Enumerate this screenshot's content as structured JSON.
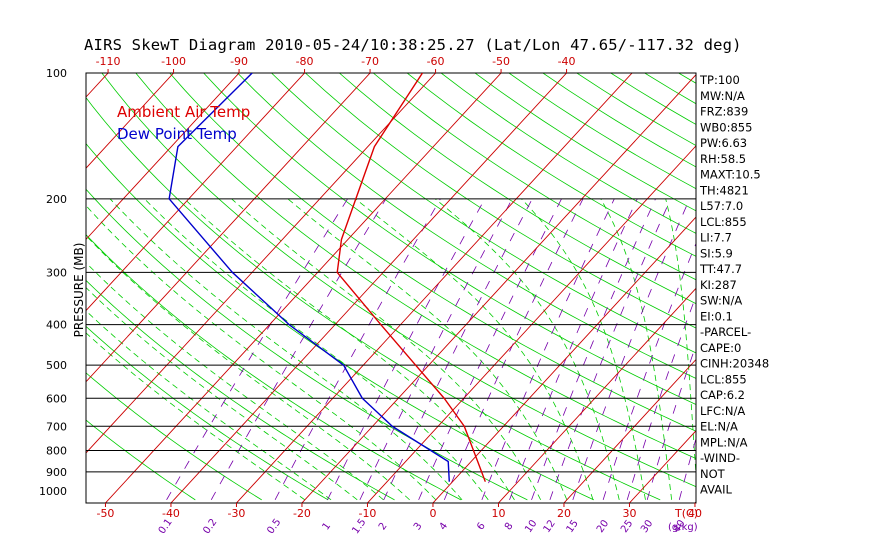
{
  "title": "AIRS SkewT Diagram 2010-05-24/10:38:25.27 (Lat/Lon 47.65/-117.32 deg)",
  "colors": {
    "air_temp": "#dd0000",
    "dew_point": "#0000cc",
    "isotherm": "#cc0000",
    "dry_adiabat": "#00cc00",
    "moist_adiabat": "#00cc00",
    "mixing_ratio": "#7700aa",
    "isobar": "#000000",
    "tick_top": "#cc0000",
    "tick_bottom": "#cc0000"
  },
  "chart_data": {
    "type": "line",
    "title": "AIRS SkewT Diagram 2010-05-24/10:38:25.27 (Lat/Lon 47.65/-117.32 deg)",
    "ylabel": "PRESSURE (MB)",
    "xlabel": "T(C)",
    "mixing_ratio_unit": "(g/kg)",
    "y_scale": "log",
    "ylim": [
      1000,
      100
    ],
    "xlim_bottom": [
      -52,
      40
    ],
    "pressure_ticks": [
      "100",
      "200",
      "300",
      "400",
      "500",
      "600",
      "700",
      "800",
      "900",
      "1000"
    ],
    "bottom_temp_ticks": [
      "-50",
      "-40",
      "-30",
      "-20",
      "-10",
      "0",
      "10",
      "20",
      "30",
      "40"
    ],
    "top_temp_ticks": [
      "-120",
      "-110",
      "-100",
      "-90",
      "-80",
      "-70",
      "-60",
      "-50",
      "-40"
    ],
    "mixing_ratio_labels": [
      "0.1",
      "0.2",
      "0.5",
      "1",
      "1.5",
      "2",
      "3",
      "4",
      "6",
      "8",
      "10",
      "12",
      "15",
      "20",
      "25",
      "30",
      "40"
    ],
    "legend": [
      "Ambient Air Temp",
      "Dew Point Temp"
    ],
    "series": [
      {
        "name": "Ambient Air Temp",
        "points": [
          {
            "p": 950,
            "t": 5.0
          },
          {
            "p": 850,
            "t": 1.0
          },
          {
            "p": 700,
            "t": -6.0
          },
          {
            "p": 600,
            "t": -13.0
          },
          {
            "p": 500,
            "t": -22.0
          },
          {
            "p": 400,
            "t": -33.0
          },
          {
            "p": 300,
            "t": -47.0
          },
          {
            "p": 250,
            "t": -51.0
          },
          {
            "p": 200,
            "t": -54.5
          },
          {
            "p": 150,
            "t": -59.0
          },
          {
            "p": 100,
            "t": -62.0
          }
        ]
      },
      {
        "name": "Dew Point Temp",
        "points": [
          {
            "p": 950,
            "t": -0.5
          },
          {
            "p": 850,
            "t": -3.5
          },
          {
            "p": 700,
            "t": -17.0
          },
          {
            "p": 600,
            "t": -25.5
          },
          {
            "p": 500,
            "t": -33.0
          },
          {
            "p": 400,
            "t": -47.0
          },
          {
            "p": 300,
            "t": -63.0
          },
          {
            "p": 250,
            "t": -72.0
          },
          {
            "p": 200,
            "t": -83.0
          },
          {
            "p": 150,
            "t": -89.0
          },
          {
            "p": 100,
            "t": -88.0
          }
        ]
      }
    ]
  },
  "stats": [
    "TP:100",
    "MW:N/A",
    "FRZ:839",
    "WB0:855",
    "PW:6.63",
    "RH:58.5",
    "MAXT:10.5",
    "TH:4821",
    "L57:7.0",
    "LCL:855",
    "LI:7.7",
    "SI:5.9",
    "TT:47.7",
    "KI:287",
    "SW:N/A",
    "EI:0.1",
    "-PARCEL-",
    "CAPE:0",
    "CINH:20348",
    "LCL:855",
    "CAP:6.2",
    "LFC:N/A",
    "EL:N/A",
    "MPL:N/A",
    "-WIND-",
    "NOT",
    "AVAIL"
  ]
}
